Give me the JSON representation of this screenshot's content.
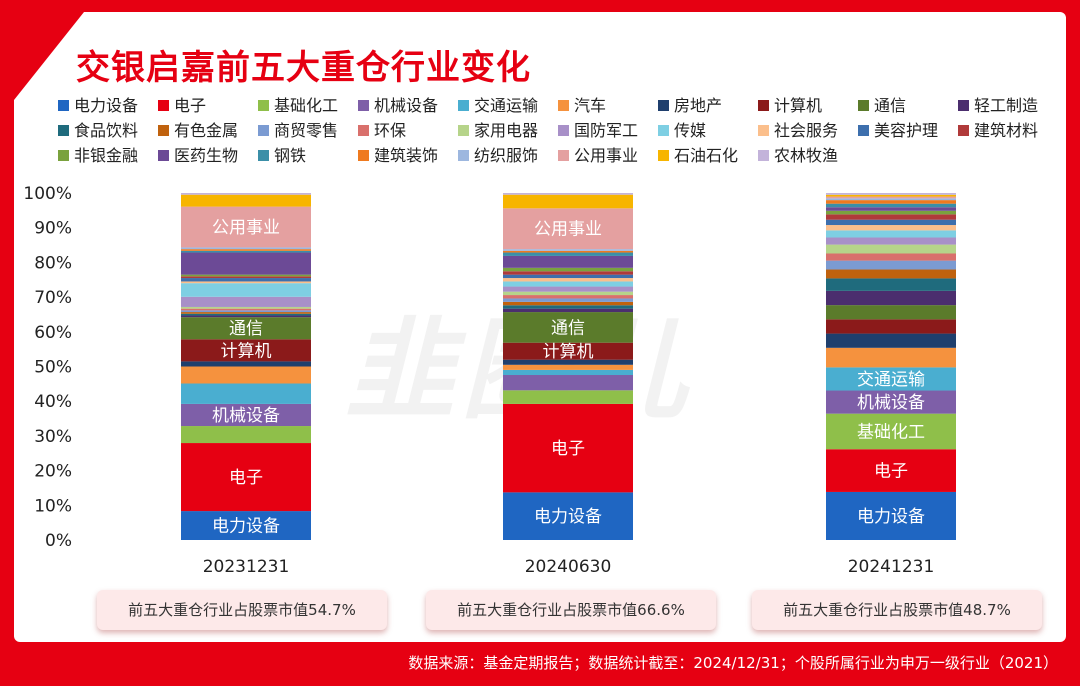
{
  "title": "交银启嘉前五大重仓行业变化",
  "watermark": "韭圈儿",
  "source": "数据来源：基金定期报告；数据统计截至：2024/12/31；个股所属行业为申万一级行业（2021）",
  "notes": [
    "前五大重仓行业占股票市值54.7%",
    "前五大重仓行业占股票市值66.6%",
    "前五大重仓行业占股票市值48.7%"
  ],
  "chart_data": {
    "type": "bar",
    "stacked": true,
    "categories": [
      "20231231",
      "20240630",
      "20241231"
    ],
    "ylim": [
      0,
      100
    ],
    "yticks": [
      "0%",
      "10%",
      "20%",
      "30%",
      "40%",
      "50%",
      "60%",
      "70%",
      "80%",
      "90%",
      "100%"
    ],
    "legend_position": "top",
    "series": [
      {
        "name": "电力设备",
        "color": "#1f66c2",
        "values": [
          8.5,
          14.0,
          13.5
        ]
      },
      {
        "name": "电子",
        "color": "#e60012",
        "values": [
          20.0,
          26.0,
          12.0
        ]
      },
      {
        "name": "基础化工",
        "color": "#8fbf4a",
        "values": [
          5.0,
          4.0,
          10.0
        ]
      },
      {
        "name": "机械设备",
        "color": "#7e5fa8",
        "values": [
          6.5,
          4.5,
          6.5
        ]
      },
      {
        "name": "交通运输",
        "color": "#4aaed0",
        "values": [
          6.0,
          1.5,
          6.5
        ]
      },
      {
        "name": "汽车",
        "color": "#f5923e",
        "values": [
          5.0,
          1.5,
          5.5
        ]
      },
      {
        "name": "房地产",
        "color": "#1f3f6d",
        "values": [
          1.5,
          1.5,
          4.0
        ]
      },
      {
        "name": "计算机",
        "color": "#8b1a1a",
        "values": [
          6.5,
          5.0,
          4.0
        ]
      },
      {
        "name": "通信",
        "color": "#5b7b2b",
        "values": [
          6.5,
          9.0,
          4.0
        ]
      },
      {
        "name": "轻工制造",
        "color": "#4b2e6e",
        "values": [
          0.5,
          1.0,
          4.0
        ]
      },
      {
        "name": "食品饮料",
        "color": "#1f6b7d",
        "values": [
          0.5,
          1.0,
          3.5
        ]
      },
      {
        "name": "有色金属",
        "color": "#c0620e",
        "values": [
          0.5,
          1.0,
          2.5
        ]
      },
      {
        "name": "商贸零售",
        "color": "#7b9bd2",
        "values": [
          0.5,
          1.0,
          2.5
        ]
      },
      {
        "name": "环保",
        "color": "#d9706c",
        "values": [
          0.5,
          1.0,
          2.0
        ]
      },
      {
        "name": "家用电器",
        "color": "#b6d48a",
        "values": [
          0.5,
          1.0,
          2.5
        ]
      },
      {
        "name": "国防军工",
        "color": "#a890c8",
        "values": [
          3.0,
          1.5,
          2.0
        ]
      },
      {
        "name": "传媒",
        "color": "#7ecfe3",
        "values": [
          4.0,
          1.5,
          2.0
        ]
      },
      {
        "name": "社会服务",
        "color": "#fbbf8c",
        "values": [
          0.5,
          1.0,
          1.5
        ]
      },
      {
        "name": "美容护理",
        "color": "#3d6fad",
        "values": [
          1.0,
          1.0,
          1.5
        ]
      },
      {
        "name": "建筑材料",
        "color": "#b03a3a",
        "values": [
          0.5,
          1.0,
          1.5
        ]
      },
      {
        "name": "非银金融",
        "color": "#7aa23e",
        "values": [
          0.5,
          1.0,
          1.0
        ]
      },
      {
        "name": "医药生物",
        "color": "#6c4a96",
        "values": [
          6.5,
          3.5,
          1.0
        ]
      },
      {
        "name": "钢铁",
        "color": "#3b8fa8",
        "values": [
          0.5,
          1.0,
          1.0
        ]
      },
      {
        "name": "建筑装饰",
        "color": "#ef7a1f",
        "values": [
          0.5,
          0.5,
          1.0
        ]
      },
      {
        "name": "纺织服饰",
        "color": "#9db7df",
        "values": [
          0.5,
          0.5,
          0.5
        ]
      },
      {
        "name": "公用事业",
        "color": "#e4a0a0",
        "values": [
          12.0,
          12.0,
          0.5
        ]
      },
      {
        "name": "石油石化",
        "color": "#f7b500",
        "values": [
          3.5,
          4.0,
          0.5
        ]
      },
      {
        "name": "农林牧渔",
        "color": "#c3b3da",
        "values": [
          0.5,
          0.5,
          0.5
        ]
      }
    ],
    "segment_labels": [
      [
        "电力设备",
        "电子",
        "机械设备",
        "计算机",
        "通信",
        "公用事业"
      ],
      [
        "电力设备",
        "电子",
        "计算机",
        "通信",
        "公用事业"
      ],
      [
        "电力设备",
        "电子",
        "基础化工",
        "机械设备",
        "交通运输"
      ]
    ]
  }
}
